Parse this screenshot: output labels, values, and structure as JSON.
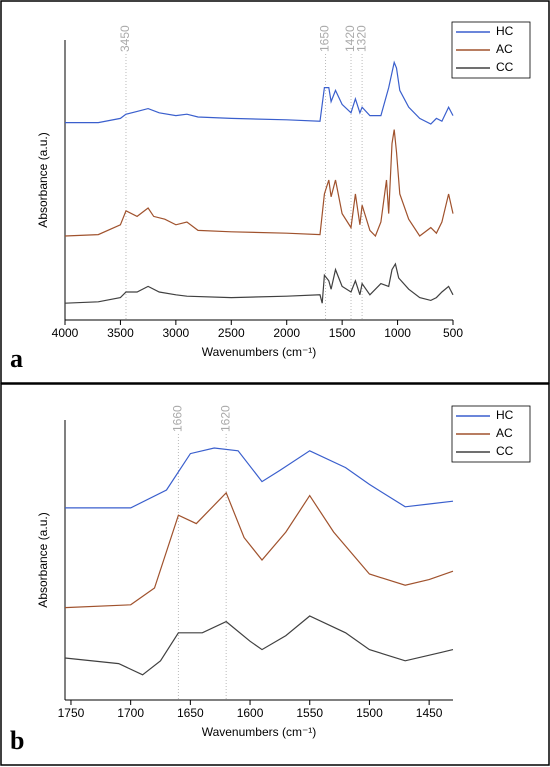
{
  "chart_data": [
    {
      "type": "line",
      "panel_label": "a",
      "xlabel": "Wavenumbers (cm⁻¹)",
      "ylabel": "Absorbance (a.u.)",
      "xlim": [
        4000,
        500
      ],
      "xticks": [
        4000,
        3500,
        3000,
        2500,
        2000,
        1500,
        1000,
        500
      ],
      "ylim": [
        0,
        100
      ],
      "annotations": [
        {
          "x": 3450,
          "label": "3450"
        },
        {
          "x": 1650,
          "label": "1650"
        },
        {
          "x": 1420,
          "label": "1420"
        },
        {
          "x": 1320,
          "label": "1320"
        }
      ],
      "series": [
        {
          "name": "HC",
          "color": "#3a5fcd",
          "x": [
            4000,
            3700,
            3500,
            3450,
            3350,
            3250,
            3150,
            3000,
            2900,
            2800,
            2500,
            2000,
            1700,
            1660,
            1620,
            1600,
            1560,
            1500,
            1420,
            1380,
            1340,
            1320,
            1250,
            1150,
            1080,
            1030,
            1010,
            980,
            900,
            800,
            700,
            650,
            600,
            540,
            500
          ],
          "values": [
            70.5,
            70.5,
            72,
            73.5,
            74.5,
            75.5,
            74,
            73,
            73.5,
            72.5,
            72,
            71.5,
            71,
            83,
            83,
            78,
            82,
            77,
            74,
            79,
            74,
            76,
            73,
            73,
            83,
            92,
            90,
            82,
            76,
            72,
            70,
            72,
            71,
            76,
            73
          ]
        },
        {
          "name": "AC",
          "color": "#a0522d",
          "x": [
            4000,
            3700,
            3500,
            3450,
            3350,
            3250,
            3200,
            3100,
            3000,
            2900,
            2800,
            2500,
            2000,
            1700,
            1660,
            1620,
            1600,
            1560,
            1500,
            1420,
            1380,
            1340,
            1320,
            1250,
            1200,
            1150,
            1100,
            1080,
            1050,
            1030,
            1010,
            980,
            900,
            800,
            700,
            650,
            600,
            540,
            500
          ],
          "values": [
            30,
            30.5,
            34,
            39,
            37,
            40,
            37,
            36,
            34,
            35,
            32,
            31.5,
            31,
            30.5,
            45,
            50,
            44,
            50,
            38,
            33,
            45,
            34,
            41,
            32,
            30,
            35,
            50,
            38,
            63,
            68,
            60,
            45,
            36,
            30,
            33,
            31,
            35,
            45,
            38
          ]
        },
        {
          "name": "CC",
          "color": "#404040",
          "x": [
            4000,
            3700,
            3500,
            3450,
            3350,
            3250,
            3150,
            3000,
            2900,
            2500,
            2000,
            1700,
            1680,
            1660,
            1620,
            1600,
            1560,
            1500,
            1420,
            1380,
            1340,
            1320,
            1250,
            1150,
            1080,
            1050,
            1020,
            990,
            900,
            800,
            700,
            650,
            600,
            540,
            500
          ],
          "values": [
            6,
            6.5,
            8,
            10,
            10,
            12,
            10,
            9,
            8.5,
            8,
            8.5,
            9,
            6,
            16,
            14,
            11,
            18,
            12,
            10,
            14,
            9,
            13,
            9,
            13,
            12,
            18,
            20,
            15,
            11,
            8,
            7,
            8,
            10,
            12,
            9
          ]
        }
      ]
    },
    {
      "type": "line",
      "panel_label": "b",
      "xlabel": "Wavenumbers (cm⁻¹)",
      "ylabel": "Absorbance (a.u.)",
      "xlim": [
        1755,
        1430
      ],
      "xticks": [
        1750,
        1700,
        1650,
        1600,
        1550,
        1500,
        1450
      ],
      "ylim": [
        0,
        100
      ],
      "annotations": [
        {
          "x": 1660,
          "label": "1660"
        },
        {
          "x": 1620,
          "label": "1620"
        }
      ],
      "series": [
        {
          "name": "HC",
          "color": "#3a5fcd",
          "x": [
            1755,
            1700,
            1670,
            1650,
            1630,
            1610,
            1590,
            1575,
            1550,
            1520,
            1500,
            1470,
            1450,
            1430
          ],
          "values": [
            68.6,
            68.6,
            75,
            88,
            90,
            89,
            78,
            82,
            89,
            83,
            77,
            69,
            70,
            71
          ]
        },
        {
          "name": "AC",
          "color": "#a0522d",
          "x": [
            1755,
            1700,
            1680,
            1660,
            1645,
            1620,
            1605,
            1590,
            1570,
            1550,
            1530,
            1500,
            1470,
            1450,
            1430
          ],
          "values": [
            33,
            34,
            40,
            66,
            63,
            74,
            58,
            50,
            60,
            73,
            60,
            45,
            41,
            43,
            46
          ]
        },
        {
          "name": "CC",
          "color": "#404040",
          "x": [
            1755,
            1710,
            1690,
            1675,
            1660,
            1640,
            1620,
            1600,
            1590,
            1570,
            1550,
            1520,
            1500,
            1470,
            1440,
            1430
          ],
          "values": [
            15,
            13,
            9,
            14,
            24,
            24,
            28,
            21,
            18,
            23,
            30,
            24,
            18,
            14,
            17,
            18
          ]
        }
      ]
    }
  ]
}
